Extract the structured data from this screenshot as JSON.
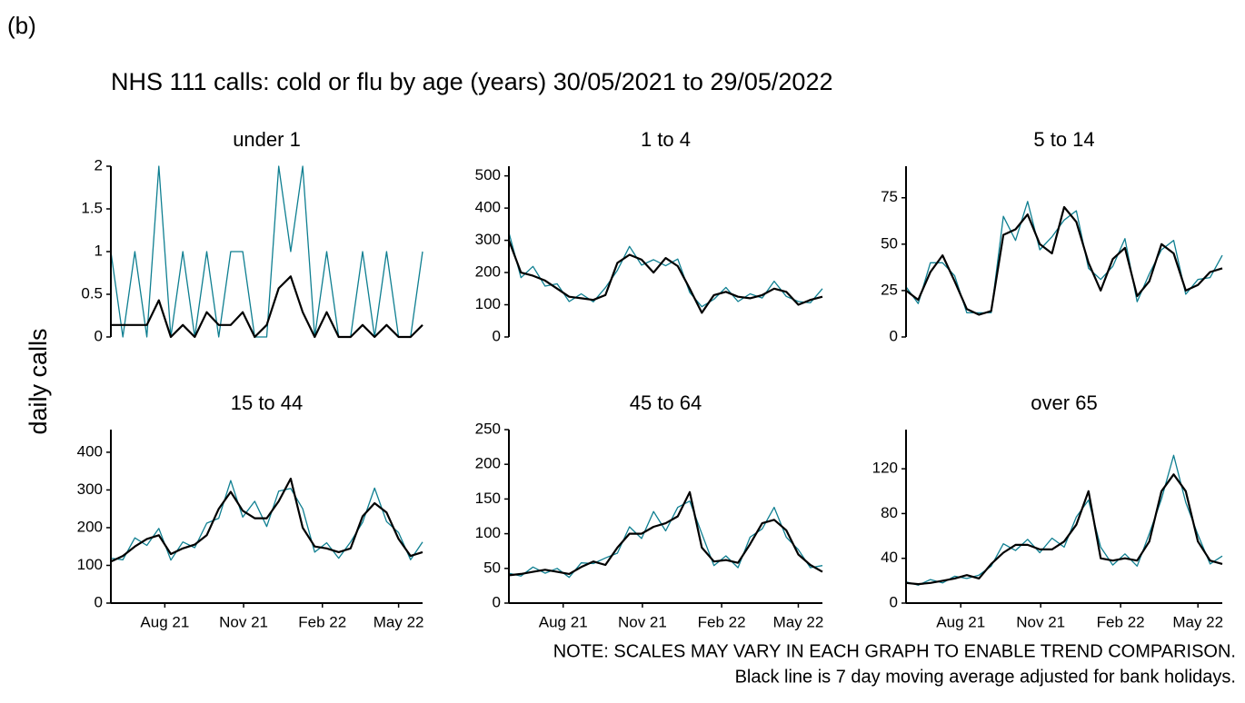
{
  "tag": "(b)",
  "title": "NHS 111 calls: cold or flu by age (years) 30/05/2021 to 29/05/2022",
  "ylabel": "daily calls",
  "notes": [
    "NOTE: SCALES MAY VARY IN EACH GRAPH TO ENABLE TREND COMPARISON.",
    "Black line is 7 day moving average adjusted for bank holidays."
  ],
  "chart_data": [
    {
      "type": "line",
      "title": "under 1",
      "xlim": [
        0,
        364
      ],
      "ylim": [
        0,
        2
      ],
      "yticks": [
        0.0,
        0.5,
        1.0,
        1.5,
        2.0
      ],
      "x": [
        0,
        14,
        28,
        42,
        56,
        70,
        84,
        98,
        112,
        126,
        140,
        154,
        168,
        182,
        196,
        210,
        224,
        238,
        252,
        266,
        280,
        294,
        308,
        322,
        336,
        350,
        364
      ],
      "series": [
        {
          "color": "#0f7f91",
          "values": [
            1,
            0,
            1,
            0,
            2,
            0,
            1,
            0,
            1,
            0,
            1,
            1,
            0,
            0,
            2,
            1,
            2,
            0,
            1,
            0,
            0,
            1,
            0,
            1,
            0,
            0,
            1
          ]
        },
        {
          "color": "#000000",
          "values": [
            0.14,
            0.14,
            0.14,
            0.14,
            0.43,
            0,
            0.14,
            0,
            0.29,
            0.14,
            0.14,
            0.29,
            0,
            0.14,
            0.57,
            0.71,
            0.29,
            0,
            0.29,
            0,
            0,
            0.14,
            0,
            0.14,
            0,
            0,
            0.14
          ]
        }
      ]
    },
    {
      "type": "line",
      "title": "1 to 4",
      "xlim": [
        0,
        364
      ],
      "ylim": [
        0,
        530
      ],
      "yticks": [
        0,
        100,
        200,
        300,
        400,
        500
      ],
      "x": [
        0,
        14,
        28,
        42,
        56,
        70,
        84,
        98,
        112,
        126,
        140,
        154,
        168,
        182,
        196,
        210,
        224,
        238,
        252,
        266,
        280,
        294,
        308,
        322,
        336,
        350,
        364
      ],
      "series": [
        {
          "color": "#0f7f91",
          "values": [
            324,
            184,
            219,
            158,
            165,
            110,
            134,
            109,
            153,
            207,
            281,
            223,
            240,
            221,
            242,
            138,
            94,
            117,
            154,
            110,
            134,
            121,
            173,
            126,
            110,
            106,
            150
          ]
        },
        {
          "color": "#000000",
          "values": [
            300,
            200,
            190,
            175,
            150,
            125,
            120,
            115,
            130,
            230,
            255,
            240,
            200,
            245,
            220,
            150,
            75,
            130,
            140,
            125,
            120,
            130,
            150,
            140,
            100,
            115,
            125
          ]
        }
      ]
    },
    {
      "type": "line",
      "title": "5 to 14",
      "xlim": [
        0,
        364
      ],
      "ylim": [
        0,
        92
      ],
      "yticks": [
        0,
        25,
        50,
        75
      ],
      "x": [
        0,
        14,
        28,
        42,
        56,
        70,
        84,
        98,
        112,
        126,
        140,
        154,
        168,
        182,
        196,
        210,
        224,
        238,
        252,
        266,
        280,
        294,
        308,
        322,
        336,
        350,
        364
      ],
      "series": [
        {
          "color": "#0f7f91",
          "values": [
            27,
            18,
            40,
            40,
            33,
            13,
            13,
            13,
            65,
            52,
            73,
            47,
            54,
            63,
            68,
            37,
            31,
            38,
            53,
            19,
            34,
            47,
            52,
            23,
            31,
            32,
            44
          ]
        },
        {
          "color": "#000000",
          "values": [
            25,
            20,
            35,
            44,
            30,
            15,
            12,
            14,
            55,
            58,
            66,
            50,
            45,
            70,
            62,
            40,
            25,
            42,
            48,
            22,
            30,
            50,
            45,
            25,
            28,
            35,
            37
          ]
        }
      ]
    },
    {
      "type": "line",
      "title": "15 to 44",
      "xlim": [
        0,
        364
      ],
      "ylim": [
        0,
        460
      ],
      "yticks": [
        0,
        100,
        200,
        300,
        400
      ],
      "xticks": [
        {
          "value": 63,
          "label": "Aug 21"
        },
        {
          "value": 155,
          "label": "Nov 21"
        },
        {
          "value": 247,
          "label": "Feb 22"
        },
        {
          "value": 336,
          "label": "May 22"
        }
      ],
      "x": [
        0,
        14,
        28,
        42,
        56,
        70,
        84,
        98,
        112,
        126,
        140,
        154,
        168,
        182,
        196,
        210,
        224,
        238,
        252,
        266,
        280,
        294,
        308,
        322,
        336,
        350,
        364
      ],
      "series": [
        {
          "color": "#0f7f91",
          "values": [
            119,
            115,
            173,
            153,
            198,
            114,
            162,
            147,
            212,
            225,
            325,
            228,
            270,
            203,
            297,
            304,
            250,
            135,
            160,
            119,
            162,
            214,
            305,
            216,
            187,
            115,
            162
          ]
        },
        {
          "color": "#000000",
          "values": [
            110,
            125,
            150,
            170,
            180,
            130,
            145,
            155,
            180,
            250,
            295,
            245,
            225,
            225,
            270,
            330,
            200,
            150,
            145,
            135,
            145,
            230,
            265,
            240,
            170,
            125,
            135
          ]
        }
      ]
    },
    {
      "type": "line",
      "title": "45 to 64",
      "xlim": [
        0,
        364
      ],
      "ylim": [
        0,
        250
      ],
      "yticks": [
        0,
        50,
        100,
        150,
        200,
        250
      ],
      "xticks": [
        {
          "value": 63,
          "label": "Aug 21"
        },
        {
          "value": 155,
          "label": "Nov 21"
        },
        {
          "value": 247,
          "label": "Feb 22"
        },
        {
          "value": 336,
          "label": "May 22"
        }
      ],
      "x": [
        0,
        14,
        28,
        42,
        56,
        70,
        84,
        98,
        112,
        126,
        140,
        154,
        168,
        182,
        196,
        210,
        224,
        238,
        252,
        266,
        280,
        294,
        308,
        322,
        336,
        350,
        364
      ],
      "series": [
        {
          "color": "#0f7f91",
          "values": [
            43,
            39,
            52,
            43,
            50,
            37,
            58,
            57,
            65,
            72,
            110,
            93,
            132,
            104,
            138,
            147,
            100,
            54,
            68,
            51,
            95,
            107,
            138,
            95,
            77,
            51,
            54
          ]
        },
        {
          "color": "#000000",
          "values": [
            40,
            42,
            45,
            48,
            45,
            42,
            52,
            60,
            55,
            80,
            100,
            100,
            110,
            115,
            125,
            160,
            80,
            60,
            62,
            58,
            85,
            115,
            120,
            105,
            70,
            55,
            45
          ]
        }
      ]
    },
    {
      "type": "line",
      "title": "over 65",
      "xlim": [
        0,
        364
      ],
      "ylim": [
        0,
        155
      ],
      "yticks": [
        0,
        40,
        80,
        120
      ],
      "xticks": [
        {
          "value": 63,
          "label": "Aug 21"
        },
        {
          "value": 155,
          "label": "Nov 21"
        },
        {
          "value": 247,
          "label": "Feb 22"
        },
        {
          "value": 336,
          "label": "May 22"
        }
      ],
      "x": [
        0,
        14,
        28,
        42,
        56,
        70,
        84,
        98,
        112,
        126,
        140,
        154,
        168,
        182,
        196,
        210,
        224,
        238,
        252,
        266,
        280,
        294,
        308,
        322,
        336,
        350,
        364
      ],
      "series": [
        {
          "color": "#0f7f91",
          "values": [
            19,
            16,
            21,
            18,
            24,
            22,
            25,
            33,
            53,
            47,
            57,
            45,
            58,
            50,
            77,
            92,
            50,
            34,
            44,
            33,
            62,
            93,
            132,
            90,
            61,
            35,
            42
          ]
        },
        {
          "color": "#000000",
          "values": [
            18,
            17,
            18,
            20,
            22,
            25,
            22,
            35,
            45,
            52,
            52,
            48,
            48,
            55,
            70,
            100,
            40,
            38,
            40,
            38,
            55,
            100,
            115,
            100,
            55,
            38,
            35
          ]
        }
      ]
    }
  ]
}
